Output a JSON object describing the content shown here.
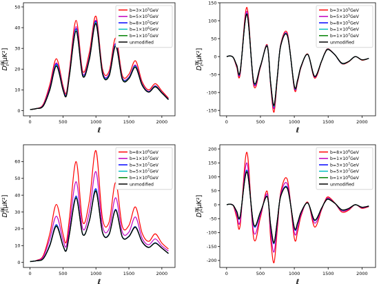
{
  "chart_data": [
    {
      "type": "line",
      "xlabel": "ℓ",
      "ylabel": "D",
      "ylabel_sup": "EE",
      "ylabel_sub": "ℓ",
      "ylabel_unit": "[μK²]",
      "xlim": [
        -100,
        2200
      ],
      "ylim": [
        -2.5,
        52
      ],
      "xticks": [
        0,
        500,
        1000,
        1500,
        2000
      ],
      "yticks": [
        0,
        10,
        20,
        30,
        40,
        50
      ],
      "legend_position": "top-right",
      "x": [
        2,
        100,
        200,
        300,
        400,
        500,
        550,
        600,
        700,
        800,
        900,
        1000,
        1100,
        1200,
        1300,
        1400,
        1500,
        1600,
        1700,
        1800,
        1900,
        2000,
        2100
      ],
      "series": [
        {
          "name": "b=3×10⁵GeV",
          "mantissa": "3",
          "exponent": "5",
          "color": "#ff0000",
          "values": [
            0.5,
            1.0,
            3.0,
            12.5,
            25.0,
            12.0,
            8.5,
            20.0,
            43.5,
            19.0,
            28.0,
            45.5,
            20.0,
            19.0,
            35.0,
            17.0,
            17.5,
            24.0,
            14.0,
            10.0,
            13.0,
            9.5,
            6.0
          ]
        },
        {
          "name": "b=5×10⁵GeV",
          "mantissa": "5",
          "exponent": "5",
          "color": "#bf00bf",
          "values": [
            0.5,
            1.0,
            2.6,
            11.2,
            23.0,
            11.0,
            7.8,
            18.5,
            40.5,
            17.8,
            26.0,
            43.5,
            18.8,
            17.8,
            32.5,
            16.0,
            16.2,
            22.0,
            13.0,
            9.3,
            12.0,
            8.8,
            5.6
          ]
        },
        {
          "name": "b=8×10⁵GeV",
          "mantissa": "8",
          "exponent": "5",
          "color": "#0000ff",
          "values": [
            0.5,
            1.0,
            2.4,
            10.5,
            22.5,
            10.5,
            7.5,
            18.0,
            39.5,
            17.2,
            25.5,
            43.0,
            18.4,
            17.3,
            32.0,
            15.6,
            15.9,
            21.5,
            12.7,
            9.1,
            11.8,
            8.7,
            5.5
          ]
        },
        {
          "name": "b=1×10⁶GeV",
          "mantissa": "1",
          "exponent": "6",
          "color": "#00bfbf",
          "values": [
            0.5,
            1.0,
            2.3,
            10.2,
            22.0,
            10.3,
            7.3,
            17.7,
            39.0,
            17.0,
            25.2,
            42.5,
            18.2,
            17.1,
            31.6,
            15.5,
            15.7,
            21.3,
            12.6,
            9.0,
            11.7,
            8.6,
            5.4
          ]
        },
        {
          "name": "b=1×10⁷GeV",
          "mantissa": "1",
          "exponent": "7",
          "color": "#008000",
          "values": [
            0.5,
            1.0,
            2.2,
            10.0,
            21.6,
            10.0,
            7.1,
            17.4,
            38.4,
            16.7,
            24.8,
            42.0,
            17.9,
            16.8,
            31.2,
            15.2,
            15.5,
            21.0,
            12.4,
            8.9,
            11.5,
            8.5,
            5.3
          ]
        },
        {
          "name": "unmodified",
          "color": "#000000",
          "values": [
            0.5,
            1.0,
            2.2,
            10.0,
            21.5,
            10.0,
            7.0,
            17.3,
            38.3,
            16.6,
            24.7,
            41.9,
            17.8,
            16.7,
            31.1,
            15.1,
            15.4,
            20.9,
            12.3,
            8.9,
            11.5,
            8.5,
            5.3
          ]
        }
      ]
    },
    {
      "type": "line",
      "xlabel": "ℓ",
      "ylabel": "D",
      "ylabel_sup": "TE",
      "ylabel_sub": "ℓ",
      "ylabel_unit": "[μK²]",
      "xlim": [
        -100,
        2200
      ],
      "ylim": [
        -165,
        150
      ],
      "xticks": [
        0,
        500,
        1000,
        1500,
        2000
      ],
      "yticks": [
        -150,
        -100,
        -50,
        0,
        50,
        100,
        150
      ],
      "legend_position": "top-right",
      "x": [
        2,
        50,
        100,
        150,
        200,
        300,
        400,
        500,
        600,
        650,
        700,
        750,
        800,
        900,
        1000,
        1050,
        1100,
        1200,
        1300,
        1400,
        1450,
        1500,
        1600,
        1700,
        1800,
        1900,
        2000,
        2100
      ],
      "series": [
        {
          "name": "b=3×10⁵GeV",
          "mantissa": "3",
          "exponent": "5",
          "color": "#ff0000",
          "values": [
            0,
            2,
            -3,
            -30,
            -50,
            137,
            -80,
            -30,
            33,
            -80,
            -155,
            -60,
            35,
            64,
            -90,
            -70,
            -30,
            7,
            -60,
            -15,
            10,
            22,
            5,
            -20,
            -15,
            0,
            -10,
            -5
          ]
        },
        {
          "name": "b=5×10⁵GeV",
          "mantissa": "5",
          "exponent": "5",
          "color": "#bf00bf",
          "values": [
            0,
            2,
            -3,
            -27,
            -46,
            126,
            -75,
            -28,
            31,
            -76,
            -145,
            -57,
            33,
            60,
            -86,
            -67,
            -28,
            6,
            -57,
            -14,
            9,
            21,
            5,
            -19,
            -14,
            0,
            -9,
            -5
          ]
        },
        {
          "name": "b=8×10⁵GeV",
          "mantissa": "8",
          "exponent": "5",
          "color": "#0000ff",
          "values": [
            0,
            2,
            -3,
            -25,
            -44,
            120,
            -72,
            -27,
            30,
            -74,
            -140,
            -56,
            32,
            58,
            -84,
            -66,
            -28,
            6,
            -56,
            -14,
            9,
            21,
            5,
            -19,
            -14,
            0,
            -9,
            -5
          ]
        },
        {
          "name": "b=1×10⁶GeV",
          "mantissa": "1",
          "exponent": "6",
          "color": "#00bfbf",
          "values": [
            0,
            2,
            -3,
            -25,
            -43,
            119,
            -71,
            -27,
            30,
            -73,
            -139,
            -55,
            32,
            58,
            -83,
            -65,
            -27,
            6,
            -55,
            -14,
            9,
            21,
            5,
            -19,
            -14,
            0,
            -9,
            -5
          ]
        },
        {
          "name": "b=1×10⁷GeV",
          "mantissa": "1",
          "exponent": "7",
          "color": "#008000",
          "values": [
            0,
            2,
            -3,
            -24,
            -42,
            118,
            -70,
            -26,
            29,
            -72,
            -137,
            -55,
            31,
            57,
            -82,
            -65,
            -27,
            6,
            -55,
            -14,
            9,
            20,
            5,
            -18,
            -14,
            0,
            -9,
            -5
          ]
        },
        {
          "name": "unmodified",
          "color": "#000000",
          "values": [
            0,
            2,
            -3,
            -24,
            -42,
            118,
            -70,
            -26,
            29,
            -72,
            -136,
            -55,
            31,
            57,
            -82,
            -64,
            -27,
            6,
            -55,
            -14,
            9,
            20,
            5,
            -18,
            -14,
            0,
            -9,
            -5
          ]
        }
      ]
    },
    {
      "type": "line",
      "xlabel": "ℓ",
      "ylabel": "D",
      "ylabel_sup": "EE",
      "ylabel_sub": "ℓ",
      "ylabel_unit": "[μK²]",
      "xlim": [
        -100,
        2200
      ],
      "ylim": [
        -3,
        70
      ],
      "xticks": [
        0,
        500,
        1000,
        1500,
        2000
      ],
      "yticks": [
        0,
        10,
        20,
        30,
        40,
        50,
        60
      ],
      "legend_position": "top-right",
      "x": [
        2,
        100,
        200,
        300,
        400,
        500,
        550,
        600,
        700,
        800,
        900,
        1000,
        1100,
        1200,
        1300,
        1400,
        1500,
        1600,
        1700,
        1800,
        1900,
        2000,
        2100
      ],
      "series": [
        {
          "name": "b=8×10⁶GeV",
          "mantissa": "8",
          "exponent": "6",
          "color": "#ff0000",
          "values": [
            0.5,
            1.2,
            4.0,
            17.0,
            34.5,
            17.0,
            12.0,
            27.0,
            60.0,
            24.0,
            36.5,
            66.5,
            26.0,
            24.0,
            47.5,
            21.5,
            22.0,
            33.0,
            17.5,
            12.5,
            17.0,
            11.5,
            8.0
          ]
        },
        {
          "name": "b=1×10⁷GeV",
          "mantissa": "1",
          "exponent": "7",
          "color": "#bf00bf",
          "values": [
            0.5,
            1.1,
            3.3,
            14.0,
            27.5,
            13.5,
            9.5,
            22.0,
            48.0,
            20.0,
            30.0,
            54.0,
            21.5,
            20.0,
            38.5,
            18.0,
            18.0,
            27.0,
            14.5,
            10.5,
            14.0,
            9.8,
            6.8
          ]
        },
        {
          "name": "b=3×10⁷GeV",
          "mantissa": "3",
          "exponent": "7",
          "color": "#0000ff",
          "values": [
            0.5,
            1.0,
            2.3,
            10.5,
            22.5,
            10.3,
            7.3,
            18.0,
            39.5,
            16.8,
            25.0,
            43.8,
            18.0,
            17.0,
            31.6,
            15.3,
            15.6,
            21.3,
            12.5,
            9.0,
            11.7,
            8.6,
            5.4
          ]
        },
        {
          "name": "b=5×10⁷GeV",
          "mantissa": "5",
          "exponent": "7",
          "color": "#00bfbf",
          "values": [
            0.5,
            1.0,
            2.2,
            10.2,
            22.0,
            10.1,
            7.1,
            17.6,
            38.8,
            16.7,
            24.8,
            43.0,
            17.9,
            16.8,
            31.2,
            15.2,
            15.5,
            21.1,
            12.4,
            8.9,
            11.6,
            8.5,
            5.3
          ]
        },
        {
          "name": "b=1×10⁸GeV",
          "mantissa": "1",
          "exponent": "8",
          "color": "#008000",
          "values": [
            0.5,
            1.0,
            2.2,
            10.0,
            21.7,
            10.0,
            7.0,
            17.4,
            38.5,
            16.6,
            24.7,
            42.6,
            17.8,
            16.7,
            31.1,
            15.1,
            15.4,
            20.9,
            12.3,
            8.9,
            11.5,
            8.5,
            5.3
          ]
        },
        {
          "name": "unmodified",
          "color": "#000000",
          "values": [
            0.5,
            1.0,
            2.2,
            10.0,
            21.5,
            10.0,
            7.0,
            17.3,
            38.3,
            16.6,
            24.7,
            42.4,
            17.8,
            16.7,
            31.1,
            15.1,
            15.4,
            20.9,
            12.3,
            8.9,
            11.5,
            8.5,
            5.3
          ]
        }
      ]
    },
    {
      "type": "line",
      "xlabel": "ℓ",
      "ylabel": "D",
      "ylabel_sup": "TE",
      "ylabel_sub": "ℓ",
      "ylabel_unit": "[μK²]",
      "xlim": [
        -100,
        2200
      ],
      "ylim": [
        -225,
        215
      ],
      "xticks": [
        0,
        500,
        1000,
        1500,
        2000
      ],
      "yticks": [
        -200,
        -150,
        -100,
        -50,
        0,
        50,
        100,
        150,
        200
      ],
      "legend_position": "top-right",
      "x": [
        2,
        50,
        100,
        150,
        200,
        300,
        400,
        500,
        600,
        650,
        700,
        750,
        800,
        900,
        1000,
        1050,
        1100,
        1200,
        1300,
        1400,
        1450,
        1500,
        1600,
        1700,
        1800,
        1900,
        2000,
        2100
      ],
      "series": [
        {
          "name": "b=8×10⁶GeV",
          "mantissa": "8",
          "exponent": "6",
          "color": "#ff0000",
          "values": [
            0,
            2,
            -4,
            -45,
            -75,
            188,
            -120,
            -45,
            48,
            -120,
            -208,
            -85,
            45,
            88,
            -120,
            -95,
            -40,
            9,
            -80,
            -20,
            12,
            28,
            6,
            -26,
            -20,
            0,
            -13,
            -7
          ]
        },
        {
          "name": "b=1×10⁷GeV",
          "mantissa": "1",
          "exponent": "7",
          "color": "#bf00bf",
          "values": [
            0,
            2,
            -3,
            -35,
            -60,
            150,
            -98,
            -36,
            38,
            -96,
            -170,
            -70,
            38,
            72,
            -100,
            -80,
            -34,
            7,
            -66,
            -17,
            10,
            24,
            5,
            -22,
            -17,
            0,
            -11,
            -6
          ]
        },
        {
          "name": "b=3×10⁷GeV",
          "mantissa": "3",
          "exponent": "7",
          "color": "#0000ff",
          "values": [
            0,
            2,
            -3,
            -26,
            -44,
            124,
            -74,
            -28,
            31,
            -76,
            -140,
            -57,
            32,
            60,
            -85,
            -67,
            -28,
            6,
            -57,
            -14,
            9,
            21,
            5,
            -19,
            -14,
            0,
            -9,
            -5
          ]
        },
        {
          "name": "b=5×10⁷GeV",
          "mantissa": "5",
          "exponent": "7",
          "color": "#00bfbf",
          "values": [
            0,
            2,
            -3,
            -25,
            -43,
            121,
            -72,
            -27,
            30,
            -74,
            -138,
            -56,
            32,
            58,
            -83,
            -66,
            -27,
            6,
            -56,
            -14,
            9,
            21,
            5,
            -19,
            -14,
            0,
            -9,
            -5
          ]
        },
        {
          "name": "b=1×10⁸GeV",
          "mantissa": "1",
          "exponent": "8",
          "color": "#008000",
          "values": [
            0,
            2,
            -3,
            -24,
            -42,
            119,
            -71,
            -26,
            29,
            -73,
            -137,
            -55,
            31,
            57,
            -82,
            -65,
            -27,
            6,
            -55,
            -14,
            9,
            20,
            5,
            -18,
            -14,
            0,
            -9,
            -5
          ]
        },
        {
          "name": "unmodified",
          "color": "#000000",
          "values": [
            0,
            2,
            -3,
            -24,
            -42,
            118,
            -70,
            -26,
            29,
            -72,
            -136,
            -55,
            31,
            57,
            -82,
            -64,
            -27,
            6,
            -55,
            -14,
            9,
            20,
            5,
            -18,
            -14,
            0,
            -9,
            -5
          ]
        }
      ]
    }
  ]
}
